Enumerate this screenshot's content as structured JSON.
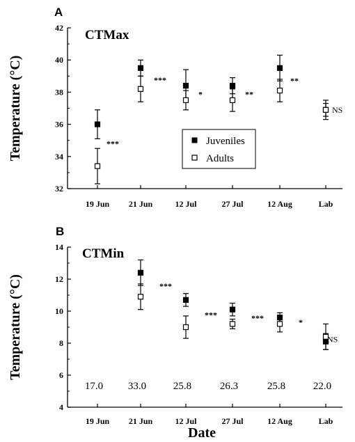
{
  "chart_data": [
    {
      "type": "scatter",
      "panel": "A",
      "title": "CTMax",
      "xlabel": "",
      "ylabel": "Temperature (°C)",
      "categories": [
        "19  Jun",
        "21  Jun",
        "12  Jul",
        "27  Jul",
        "12  Aug",
        "Lab"
      ],
      "ylim": [
        32,
        42
      ],
      "yticks": [
        32,
        34,
        36,
        38,
        40,
        42
      ],
      "grid": false,
      "legend": {
        "placement": "center-right",
        "entries": [
          "Juveniles",
          "Adults"
        ]
      },
      "series": [
        {
          "name": "Juveniles",
          "marker": "filled-square",
          "values": [
            36.0,
            39.5,
            38.4,
            38.4,
            39.5,
            36.9
          ],
          "err": [
            0.9,
            0.5,
            1.0,
            0.5,
            0.8,
            0.6
          ]
        },
        {
          "name": "Adults",
          "marker": "open-square",
          "values": [
            33.4,
            38.2,
            37.5,
            37.5,
            38.1,
            36.9
          ],
          "err": [
            1.1,
            0.8,
            0.6,
            0.7,
            0.7,
            0.4
          ]
        }
      ],
      "significance": [
        "***",
        "***",
        "*",
        "**",
        "**",
        "NS"
      ]
    },
    {
      "type": "scatter",
      "panel": "B",
      "title": "CTMin",
      "xlabel": "Date",
      "ylabel": "Temperature (°C)",
      "categories": [
        "19  Jun",
        "21  Jun",
        "12  Jul",
        "27  Jul",
        "12  Aug",
        "Lab"
      ],
      "ylim": [
        4,
        14
      ],
      "yticks": [
        4,
        6,
        8,
        10,
        12,
        14
      ],
      "grid": false,
      "series": [
        {
          "name": "Juveniles",
          "marker": "filled-square",
          "values": [
            null,
            12.4,
            10.7,
            10.1,
            9.6,
            8.1
          ],
          "err": [
            null,
            0.8,
            0.4,
            0.4,
            0.3,
            0.5
          ]
        },
        {
          "name": "Adults",
          "marker": "open-square",
          "values": [
            null,
            10.9,
            9.0,
            9.2,
            9.2,
            8.4
          ],
          "err": [
            null,
            0.8,
            0.7,
            0.3,
            0.5,
            0.8
          ]
        }
      ],
      "significance": [
        "",
        "***",
        "***",
        "***",
        "*",
        "NS"
      ],
      "bottom_values": [
        "17.0",
        "33.0",
        "25.8",
        "26.3",
        "25.8",
        "22.0"
      ]
    }
  ]
}
